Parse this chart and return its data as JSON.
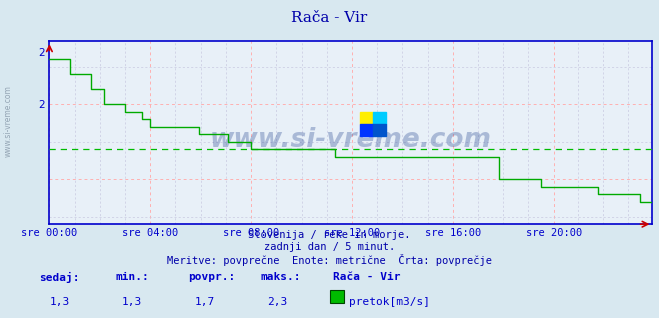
{
  "title": "Rača - Vir",
  "bg_color": "#d8e8f0",
  "plot_bg_color": "#e8f0f8",
  "line_color": "#00aa00",
  "avg_line_color": "#00bb00",
  "axis_color": "#0000cc",
  "grid_color_major": "#ffb0b0",
  "grid_color_minor": "#c8c8e0",
  "title_color": "#0000aa",
  "text_color": "#0000aa",
  "ylim": [
    1.2,
    2.42
  ],
  "xlim": [
    0,
    287
  ],
  "xtick_positions": [
    0,
    48,
    96,
    144,
    192,
    240
  ],
  "xtick_labels": [
    "sre 00:00",
    "sre 04:00",
    "sre 08:00",
    "sre 12:00",
    "sre 16:00",
    "sre 20:00"
  ],
  "ytick_positions": [
    2.0,
    2.0
  ],
  "avg_value": 1.7,
  "min_value": 1.3,
  "max_value": 2.3,
  "current_value": 1.3,
  "avg_display": "1,7",
  "min_display": "1,3",
  "max_display": "2,3",
  "current_display": "1,3",
  "subtitle1": "Slovenija / reke in morje.",
  "subtitle2": "zadnji dan / 5 minut.",
  "subtitle3": "Meritve: povprečne  Enote: metrične  Črta: povprečje",
  "legend_station": "Rača - Vir",
  "legend_label": "pretok[m3/s]",
  "label_sedaj": "sedaj:",
  "label_min": "min.:",
  "label_povpr": "povpr.:",
  "label_maks": "maks.:",
  "flow_data": [
    2.3,
    2.3,
    2.3,
    2.3,
    2.3,
    2.3,
    2.3,
    2.3,
    2.3,
    2.3,
    2.2,
    2.2,
    2.2,
    2.2,
    2.2,
    2.2,
    2.2,
    2.2,
    2.2,
    2.2,
    2.1,
    2.1,
    2.1,
    2.1,
    2.1,
    2.1,
    2.0,
    2.0,
    2.0,
    2.0,
    2.0,
    2.0,
    2.0,
    2.0,
    2.0,
    2.0,
    1.95,
    1.95,
    1.95,
    1.95,
    1.95,
    1.95,
    1.95,
    1.95,
    1.9,
    1.9,
    1.9,
    1.9,
    1.85,
    1.85,
    1.85,
    1.85,
    1.85,
    1.85,
    1.85,
    1.85,
    1.85,
    1.85,
    1.85,
    1.85,
    1.85,
    1.85,
    1.85,
    1.85,
    1.85,
    1.85,
    1.85,
    1.85,
    1.85,
    1.85,
    1.85,
    1.8,
    1.8,
    1.8,
    1.8,
    1.8,
    1.8,
    1.8,
    1.8,
    1.8,
    1.8,
    1.8,
    1.8,
    1.8,
    1.8,
    1.75,
    1.75,
    1.75,
    1.75,
    1.75,
    1.75,
    1.75,
    1.75,
    1.75,
    1.75,
    1.75,
    1.7,
    1.7,
    1.7,
    1.7,
    1.7,
    1.7,
    1.7,
    1.7,
    1.7,
    1.7,
    1.7,
    1.7,
    1.7,
    1.7,
    1.7,
    1.7,
    1.7,
    1.7,
    1.7,
    1.7,
    1.7,
    1.7,
    1.7,
    1.7,
    1.7,
    1.7,
    1.7,
    1.7,
    1.7,
    1.7,
    1.7,
    1.7,
    1.7,
    1.7,
    1.7,
    1.7,
    1.7,
    1.7,
    1.7,
    1.7,
    1.65,
    1.65,
    1.65,
    1.65,
    1.65,
    1.65,
    1.65,
    1.65,
    1.65,
    1.65,
    1.65,
    1.65,
    1.65,
    1.65,
    1.65,
    1.65,
    1.65,
    1.65,
    1.65,
    1.65,
    1.65,
    1.65,
    1.65,
    1.65,
    1.65,
    1.65,
    1.65,
    1.65,
    1.65,
    1.65,
    1.65,
    1.65,
    1.65,
    1.65,
    1.65,
    1.65,
    1.65,
    1.65,
    1.65,
    1.65,
    1.65,
    1.65,
    1.65,
    1.65,
    1.65,
    1.65,
    1.65,
    1.65,
    1.65,
    1.65,
    1.65,
    1.65,
    1.65,
    1.65,
    1.65,
    1.65,
    1.65,
    1.65,
    1.65,
    1.65,
    1.65,
    1.65,
    1.65,
    1.65,
    1.65,
    1.65,
    1.65,
    1.65,
    1.65,
    1.65,
    1.65,
    1.65,
    1.65,
    1.65,
    1.65,
    1.65,
    1.65,
    1.65,
    1.5,
    1.5,
    1.5,
    1.5,
    1.5,
    1.5,
    1.5,
    1.5,
    1.5,
    1.5,
    1.5,
    1.5,
    1.5,
    1.5,
    1.5,
    1.5,
    1.5,
    1.5,
    1.5,
    1.5,
    1.45,
    1.45,
    1.45,
    1.45,
    1.45,
    1.45,
    1.45,
    1.45,
    1.45,
    1.45,
    1.45,
    1.45,
    1.45,
    1.45,
    1.45,
    1.45,
    1.45,
    1.45,
    1.45,
    1.45,
    1.45,
    1.45,
    1.45,
    1.45,
    1.45,
    1.45,
    1.45,
    1.4,
    1.4,
    1.4,
    1.4,
    1.4,
    1.4,
    1.4,
    1.4,
    1.4,
    1.4,
    1.4,
    1.4,
    1.4,
    1.4,
    1.4,
    1.4,
    1.4,
    1.4,
    1.4,
    1.4,
    1.35,
    1.35,
    1.35,
    1.35,
    1.35,
    1.35,
    1.35,
    1.35,
    1.35,
    1.35,
    1.35,
    1.35,
    1.3,
    1.3
  ]
}
